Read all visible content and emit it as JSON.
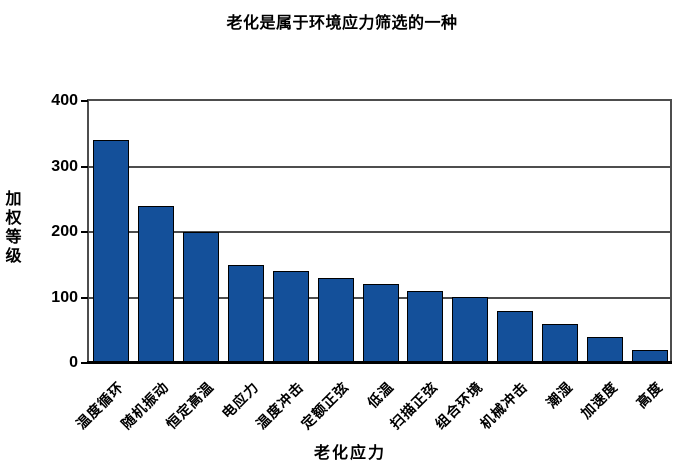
{
  "chart_data": {
    "type": "bar",
    "title": "老化是属于环境应力筛选的一种",
    "xlabel": "老化应力",
    "ylabel": "加权等级",
    "categories": [
      "温度循环",
      "随机振动",
      "恒定高温",
      "电应力",
      "温度冲击",
      "定额正弦",
      "低温",
      "扫描正弦",
      "组合环境",
      "机械冲击",
      "潮湿",
      "加速度",
      "高度"
    ],
    "values": [
      340,
      240,
      200,
      150,
      140,
      130,
      120,
      110,
      100,
      80,
      60,
      40,
      20
    ],
    "ylim": [
      0,
      400
    ],
    "yticks": [
      0,
      100,
      200,
      300,
      400
    ],
    "grid": "horizontal",
    "legend": "none",
    "colors": {
      "bar_fill": "#14509A",
      "bar_border": "#000000",
      "gridline": "#4d4d4d",
      "frame": "#4d4d4d",
      "axis_line": "#000000",
      "tick": "#000000",
      "text": "#000000",
      "background": "#ffffff"
    }
  }
}
